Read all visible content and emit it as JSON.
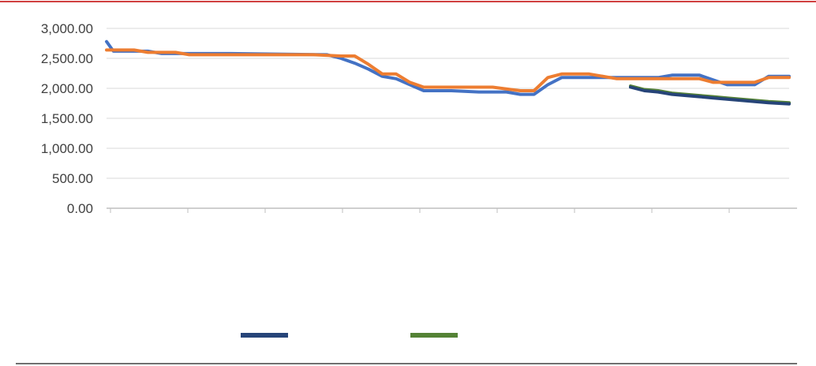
{
  "chart_data": {
    "type": "line",
    "title": "",
    "xlabel": "",
    "ylabel": "",
    "ylim": [
      0,
      3000
    ],
    "yticks": [
      "0.00",
      "500.00",
      "1,000.00",
      "1,500.00",
      "2,000.00",
      "2,500.00",
      "3,000.00"
    ],
    "ytick_values": [
      0,
      500,
      1000,
      1500,
      2000,
      2500,
      3000
    ],
    "grid": "horizontal",
    "legend_position": "bottom",
    "x_count": 100,
    "series": [
      {
        "name": "",
        "color": "#4472C4",
        "points": [
          [
            0,
            2780
          ],
          [
            1,
            2620
          ],
          [
            6,
            2620
          ],
          [
            8,
            2580
          ],
          [
            10,
            2580
          ],
          [
            18,
            2580
          ],
          [
            32,
            2560
          ],
          [
            34,
            2500
          ],
          [
            36,
            2420
          ],
          [
            38,
            2320
          ],
          [
            40,
            2200
          ],
          [
            42,
            2160
          ],
          [
            44,
            2060
          ],
          [
            46,
            1960
          ],
          [
            50,
            1960
          ],
          [
            54,
            1940
          ],
          [
            58,
            1940
          ],
          [
            60,
            1900
          ],
          [
            62,
            1900
          ],
          [
            64,
            2060
          ],
          [
            66,
            2180
          ],
          [
            70,
            2180
          ],
          [
            74,
            2180
          ],
          [
            78,
            2180
          ],
          [
            80,
            2180
          ],
          [
            82,
            2220
          ],
          [
            86,
            2220
          ],
          [
            88,
            2140
          ],
          [
            90,
            2060
          ],
          [
            92,
            2060
          ],
          [
            94,
            2060
          ],
          [
            96,
            2200
          ],
          [
            99,
            2200
          ]
        ]
      },
      {
        "name": "",
        "color": "#ED7D31",
        "points": [
          [
            0,
            2640
          ],
          [
            4,
            2640
          ],
          [
            6,
            2600
          ],
          [
            10,
            2600
          ],
          [
            12,
            2560
          ],
          [
            18,
            2560
          ],
          [
            30,
            2560
          ],
          [
            34,
            2540
          ],
          [
            36,
            2540
          ],
          [
            38,
            2400
          ],
          [
            40,
            2240
          ],
          [
            42,
            2240
          ],
          [
            44,
            2100
          ],
          [
            46,
            2020
          ],
          [
            50,
            2020
          ],
          [
            56,
            2020
          ],
          [
            60,
            1960
          ],
          [
            62,
            1960
          ],
          [
            64,
            2180
          ],
          [
            66,
            2240
          ],
          [
            70,
            2240
          ],
          [
            74,
            2160
          ],
          [
            78,
            2160
          ],
          [
            80,
            2160
          ],
          [
            82,
            2160
          ],
          [
            86,
            2160
          ],
          [
            88,
            2100
          ],
          [
            90,
            2100
          ],
          [
            92,
            2100
          ],
          [
            94,
            2100
          ],
          [
            96,
            2180
          ],
          [
            99,
            2180
          ]
        ]
      },
      {
        "name": "",
        "color": "#548235",
        "points": [
          [
            76,
            2040
          ],
          [
            78,
            1980
          ],
          [
            80,
            1960
          ],
          [
            82,
            1920
          ],
          [
            84,
            1900
          ],
          [
            86,
            1880
          ],
          [
            88,
            1860
          ],
          [
            90,
            1840
          ],
          [
            92,
            1820
          ],
          [
            94,
            1800
          ],
          [
            96,
            1780
          ],
          [
            99,
            1760
          ]
        ]
      },
      {
        "name": "",
        "color": "#264478",
        "points": [
          [
            76,
            2020
          ],
          [
            78,
            1960
          ],
          [
            80,
            1940
          ],
          [
            82,
            1900
          ],
          [
            84,
            1880
          ],
          [
            86,
            1860
          ],
          [
            88,
            1840
          ],
          [
            90,
            1820
          ],
          [
            92,
            1800
          ],
          [
            94,
            1780
          ],
          [
            96,
            1760
          ],
          [
            99,
            1740
          ]
        ]
      }
    ],
    "legend": [
      {
        "name": "",
        "color": "#264478"
      },
      {
        "name": "",
        "color": "#548235"
      }
    ]
  }
}
